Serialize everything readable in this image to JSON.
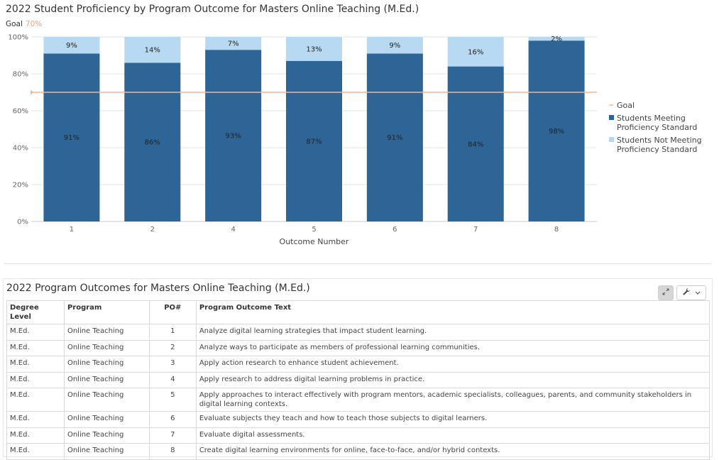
{
  "chart_title": "2022 Student Proficiency by Program Outcome for Masters Online Teaching (M.Ed.)",
  "goal_label": "Goal",
  "goal_value_label": "70%",
  "chart_data": {
    "type": "bar",
    "stacked": true,
    "title": "2022 Student Proficiency by Program Outcome for Masters Online Teaching (M.Ed.)",
    "xlabel": "Outcome Number",
    "ylabel": "",
    "categories": [
      "1",
      "2",
      "4",
      "5",
      "6",
      "7",
      "8"
    ],
    "series": [
      {
        "name": "Students Meeting Proficiency Standard",
        "values": [
          91,
          86,
          93,
          87,
          91,
          84,
          98
        ],
        "labels": [
          "91%",
          "86%",
          "93%",
          "87%",
          "91%",
          "84%",
          "98%"
        ],
        "color": "#2e6597"
      },
      {
        "name": "Students Not Meeting Proficiency Standard",
        "values": [
          9,
          14,
          7,
          13,
          9,
          16,
          2
        ],
        "labels": [
          "9%",
          "14%",
          "7%",
          "13%",
          "9%",
          "16%",
          "2%"
        ],
        "color": "#b7d9f2"
      }
    ],
    "goal": {
      "name": "Goal",
      "value": 70,
      "color": "#f4b49a"
    },
    "ylim": [
      0,
      100
    ],
    "yticks": [
      "0%",
      "20%",
      "40%",
      "60%",
      "80%",
      "100%"
    ],
    "grid": true,
    "legend_position": "right",
    "legend": [
      {
        "lines": [
          "Goal"
        ],
        "color": "#f4b49a",
        "kind": "line"
      },
      {
        "lines": [
          "Students Meeting",
          "Proficiency Standard"
        ],
        "color": "#2e6597",
        "kind": "box"
      },
      {
        "lines": [
          "Students Not Meeting",
          "Proficiency Standard"
        ],
        "color": "#b7d9f2",
        "kind": "box"
      }
    ]
  },
  "table": {
    "title": "2022 Program Outcomes for Masters Online Teaching (M.Ed.)",
    "columns": [
      "Degree Level",
      "Program",
      "PO#",
      "Program Outcome Text"
    ],
    "rows": [
      [
        "M.Ed.",
        "Online Teaching",
        "1",
        "Analyze digital learning strategies that impact student learning."
      ],
      [
        "M.Ed.",
        "Online Teaching",
        "2",
        "Analyze ways to participate as members of professional learning communities."
      ],
      [
        "M.Ed.",
        "Online Teaching",
        "3",
        "Apply action research to enhance student achievement."
      ],
      [
        "M.Ed.",
        "Online Teaching",
        "4",
        "Apply research to address digital learning problems in practice."
      ],
      [
        "M.Ed.",
        "Online Teaching",
        "5",
        "Apply approaches to interact effectively with program mentors, academic specialists, colleagues, parents, and community stakeholders in digital learning contexts."
      ],
      [
        "M.Ed.",
        "Online Teaching",
        "6",
        "Evaluate subjects they teach and how to teach those subjects to digital learners."
      ],
      [
        "M.Ed.",
        "Online Teaching",
        "7",
        "Evaluate digital assessments."
      ],
      [
        "M.Ed.",
        "Online Teaching",
        "8",
        "Create digital learning environments for online, face-to-face, and/or hybrid contexts."
      ]
    ]
  },
  "toolbar": {
    "expand_icon": "expand-icon",
    "tools_icon": "wrench-icon",
    "dropdown_icon": "chevron-down-icon"
  }
}
